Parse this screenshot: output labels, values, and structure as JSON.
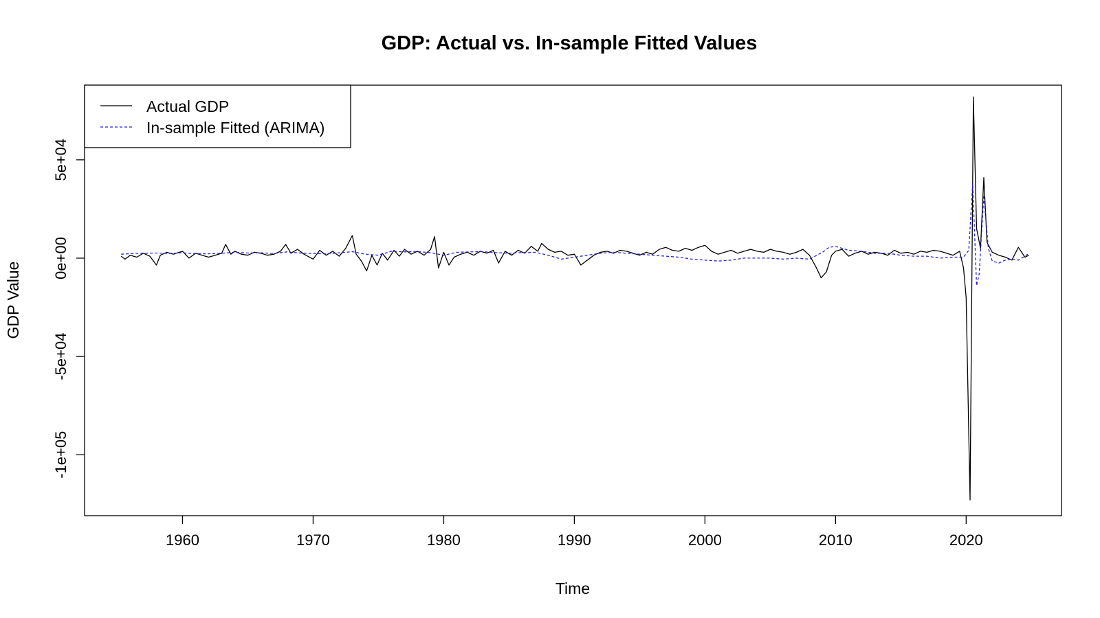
{
  "chart_data": {
    "type": "line",
    "title": "GDP: Actual vs. In-sample Fitted Values",
    "xlabel": "Time",
    "ylabel": "GDP Value",
    "xlim": [
      1952.5,
      2027.3
    ],
    "ylim": [
      -131000,
      88000
    ],
    "x_ticks": [
      1960,
      1970,
      1980,
      1990,
      2000,
      2010,
      2020
    ],
    "x_tick_labels": [
      "1960",
      "1970",
      "1980",
      "1990",
      "2000",
      "2010",
      "2020"
    ],
    "y_ticks": [
      -100000,
      -50000,
      0,
      50000
    ],
    "y_tick_labels": [
      "-1e+05",
      "-5e+04",
      "0e+00",
      "5e+04"
    ],
    "legend_position": "top-left",
    "grid": false,
    "series": [
      {
        "name": "Actual GDP",
        "color": "#000000",
        "line_style": "solid",
        "points": [
          [
            1955.3,
            1000
          ],
          [
            1955.6,
            -500
          ],
          [
            1956.0,
            1500
          ],
          [
            1956.5,
            500
          ],
          [
            1957.0,
            2500
          ],
          [
            1957.5,
            1000
          ],
          [
            1958.0,
            -3500
          ],
          [
            1958.3,
            1500
          ],
          [
            1958.8,
            3000
          ],
          [
            1959.3,
            2000
          ],
          [
            1960.0,
            3500
          ],
          [
            1960.5,
            0
          ],
          [
            1961.0,
            2500
          ],
          [
            1961.5,
            1500
          ],
          [
            1962.0,
            500
          ],
          [
            1962.5,
            1500
          ],
          [
            1963.0,
            2500
          ],
          [
            1963.3,
            7000
          ],
          [
            1963.7,
            2000
          ],
          [
            1964.0,
            3500
          ],
          [
            1964.5,
            2000
          ],
          [
            1965.0,
            1500
          ],
          [
            1965.5,
            3000
          ],
          [
            1966.0,
            2500
          ],
          [
            1966.5,
            1500
          ],
          [
            1967.0,
            2000
          ],
          [
            1967.5,
            3500
          ],
          [
            1967.9,
            7000
          ],
          [
            1968.3,
            2500
          ],
          [
            1968.8,
            4500
          ],
          [
            1969.3,
            2000
          ],
          [
            1970.0,
            -500
          ],
          [
            1970.5,
            4000
          ],
          [
            1971.0,
            1500
          ],
          [
            1971.5,
            3500
          ],
          [
            1972.0,
            1000
          ],
          [
            1972.5,
            5000
          ],
          [
            1973.0,
            11500
          ],
          [
            1973.3,
            2000
          ],
          [
            1973.7,
            -1500
          ],
          [
            1974.1,
            -6500
          ],
          [
            1974.5,
            1500
          ],
          [
            1974.9,
            -3500
          ],
          [
            1975.3,
            2500
          ],
          [
            1975.7,
            -1000
          ],
          [
            1976.2,
            4000
          ],
          [
            1976.6,
            1000
          ],
          [
            1977.0,
            4500
          ],
          [
            1977.5,
            2000
          ],
          [
            1978.0,
            3500
          ],
          [
            1978.5,
            1500
          ],
          [
            1979.0,
            4500
          ],
          [
            1979.3,
            11000
          ],
          [
            1979.6,
            -5000
          ],
          [
            1980.0,
            3000
          ],
          [
            1980.4,
            -3500
          ],
          [
            1980.8,
            500
          ],
          [
            1981.3,
            2000
          ],
          [
            1981.8,
            3000
          ],
          [
            1982.3,
            1500
          ],
          [
            1982.8,
            3500
          ],
          [
            1983.3,
            2500
          ],
          [
            1983.8,
            4000
          ],
          [
            1984.2,
            -2500
          ],
          [
            1984.7,
            3500
          ],
          [
            1985.2,
            1500
          ],
          [
            1985.7,
            4000
          ],
          [
            1986.2,
            2500
          ],
          [
            1986.7,
            6000
          ],
          [
            1987.2,
            3500
          ],
          [
            1987.5,
            7500
          ],
          [
            1988.0,
            4500
          ],
          [
            1988.5,
            3000
          ],
          [
            1989.0,
            3500
          ],
          [
            1989.5,
            1500
          ],
          [
            1990.0,
            2000
          ],
          [
            1990.5,
            -3500
          ],
          [
            1991.0,
            -1000
          ],
          [
            1991.5,
            1500
          ],
          [
            1992.0,
            3000
          ],
          [
            1992.5,
            3500
          ],
          [
            1993.0,
            2500
          ],
          [
            1993.5,
            4000
          ],
          [
            1994.0,
            3500
          ],
          [
            1994.5,
            2500
          ],
          [
            1995.0,
            1500
          ],
          [
            1995.5,
            3000
          ],
          [
            1996.0,
            2000
          ],
          [
            1996.5,
            4500
          ],
          [
            1997.0,
            5500
          ],
          [
            1997.5,
            4000
          ],
          [
            1998.0,
            3500
          ],
          [
            1998.5,
            5000
          ],
          [
            1999.0,
            4000
          ],
          [
            1999.5,
            5500
          ],
          [
            2000.0,
            6500
          ],
          [
            2000.5,
            3500
          ],
          [
            2001.0,
            2000
          ],
          [
            2001.5,
            3000
          ],
          [
            2002.0,
            4000
          ],
          [
            2002.5,
            2500
          ],
          [
            2003.0,
            3500
          ],
          [
            2003.5,
            4500
          ],
          [
            2004.0,
            3500
          ],
          [
            2004.5,
            3000
          ],
          [
            2005.0,
            4500
          ],
          [
            2005.5,
            3500
          ],
          [
            2006.0,
            3000
          ],
          [
            2006.5,
            2000
          ],
          [
            2007.0,
            3000
          ],
          [
            2007.5,
            4500
          ],
          [
            2008.0,
            1500
          ],
          [
            2008.5,
            -4500
          ],
          [
            2008.9,
            -10000
          ],
          [
            2009.3,
            -7000
          ],
          [
            2009.7,
            1500
          ],
          [
            2010.0,
            3500
          ],
          [
            2010.5,
            4500
          ],
          [
            2011.0,
            1000
          ],
          [
            2011.5,
            2500
          ],
          [
            2012.0,
            3500
          ],
          [
            2012.5,
            2000
          ],
          [
            2013.0,
            3000
          ],
          [
            2013.5,
            2500
          ],
          [
            2014.0,
            1500
          ],
          [
            2014.5,
            4000
          ],
          [
            2015.0,
            2500
          ],
          [
            2015.5,
            3000
          ],
          [
            2016.0,
            2000
          ],
          [
            2016.5,
            3500
          ],
          [
            2017.0,
            3000
          ],
          [
            2017.5,
            4000
          ],
          [
            2018.0,
            3500
          ],
          [
            2018.5,
            2500
          ],
          [
            2019.0,
            1500
          ],
          [
            2019.5,
            3500
          ],
          [
            2019.8,
            -5000
          ],
          [
            2020.0,
            -20000
          ],
          [
            2020.3,
            -123000
          ],
          [
            2020.55,
            82000
          ],
          [
            2020.8,
            15000
          ],
          [
            2021.1,
            5000
          ],
          [
            2021.35,
            41000
          ],
          [
            2021.6,
            8000
          ],
          [
            2022.0,
            3000
          ],
          [
            2022.5,
            1500
          ],
          [
            2023.0,
            500
          ],
          [
            2023.5,
            -1000
          ],
          [
            2024.0,
            5500
          ],
          [
            2024.5,
            500
          ],
          [
            2024.8,
            1500
          ]
        ]
      },
      {
        "name": "In-sample Fitted (ARIMA)",
        "color": "#2222dd",
        "line_style": "dashed",
        "points": [
          [
            1955.3,
            2000
          ],
          [
            1956.0,
            2300
          ],
          [
            1957.0,
            2500
          ],
          [
            1958.0,
            2600
          ],
          [
            1959.0,
            2400
          ],
          [
            1960.0,
            2700
          ],
          [
            1961.0,
            2300
          ],
          [
            1962.0,
            2200
          ],
          [
            1963.0,
            2500
          ],
          [
            1964.0,
            3000
          ],
          [
            1965.0,
            2600
          ],
          [
            1966.0,
            2700
          ],
          [
            1967.0,
            2400
          ],
          [
            1968.0,
            3200
          ],
          [
            1969.0,
            2600
          ],
          [
            1970.0,
            2400
          ],
          [
            1971.0,
            2200
          ],
          [
            1972.0,
            2700
          ],
          [
            1973.0,
            3300
          ],
          [
            1974.0,
            2000
          ],
          [
            1975.0,
            1500
          ],
          [
            1976.0,
            3500
          ],
          [
            1977.0,
            3200
          ],
          [
            1978.0,
            3300
          ],
          [
            1979.0,
            2800
          ],
          [
            1980.0,
            1500
          ],
          [
            1981.0,
            3000
          ],
          [
            1982.0,
            3200
          ],
          [
            1983.0,
            3300
          ],
          [
            1984.0,
            2800
          ],
          [
            1985.0,
            2500
          ],
          [
            1986.0,
            2800
          ],
          [
            1987.0,
            3000
          ],
          [
            1988.0,
            1500
          ],
          [
            1989.0,
            -500
          ],
          [
            1990.0,
            500
          ],
          [
            1991.0,
            1500
          ],
          [
            1992.0,
            2500
          ],
          [
            1993.0,
            3000
          ],
          [
            1994.0,
            2500
          ],
          [
            1995.0,
            2000
          ],
          [
            1996.0,
            1500
          ],
          [
            1997.0,
            1000
          ],
          [
            1998.0,
            500
          ],
          [
            1999.0,
            -500
          ],
          [
            2000.0,
            -1000
          ],
          [
            2001.0,
            -1500
          ],
          [
            2002.0,
            -1000
          ],
          [
            2003.0,
            0
          ],
          [
            2004.0,
            0
          ],
          [
            2005.0,
            0
          ],
          [
            2006.0,
            -500
          ],
          [
            2007.0,
            0
          ],
          [
            2008.0,
            -500
          ],
          [
            2009.0,
            3000
          ],
          [
            2009.5,
            5500
          ],
          [
            2010.0,
            6000
          ],
          [
            2010.5,
            5000
          ],
          [
            2011.0,
            4000
          ],
          [
            2012.0,
            3500
          ],
          [
            2013.0,
            2500
          ],
          [
            2014.0,
            2500
          ],
          [
            2015.0,
            1500
          ],
          [
            2016.0,
            1000
          ],
          [
            2017.0,
            1000
          ],
          [
            2018.0,
            0
          ],
          [
            2019.0,
            500
          ],
          [
            2019.8,
            500
          ],
          [
            2020.2,
            4000
          ],
          [
            2020.5,
            38000
          ],
          [
            2020.8,
            -14000
          ],
          [
            2021.0,
            -8000
          ],
          [
            2021.35,
            32000
          ],
          [
            2021.7,
            5000
          ],
          [
            2022.0,
            -1500
          ],
          [
            2022.5,
            -2500
          ],
          [
            2023.0,
            -1000
          ],
          [
            2023.5,
            -500
          ],
          [
            2024.0,
            -1000
          ],
          [
            2024.5,
            1000
          ],
          [
            2024.8,
            2500
          ]
        ]
      }
    ]
  }
}
